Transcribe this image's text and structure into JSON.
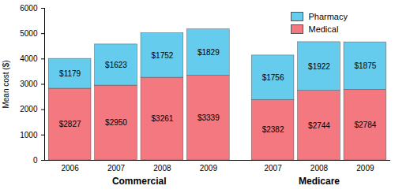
{
  "chart_data": {
    "type": "bar",
    "stacked": true,
    "data_labels": true,
    "legend": "top-right",
    "y_label": "Mean cost ($)",
    "categories": [
      "2006",
      "2007",
      "2008",
      "2009",
      "2007",
      "2008",
      "2009"
    ],
    "category_groups": [
      "Commercial",
      "Commercial",
      "Commercial",
      "Commercial",
      "Medicare",
      "Medicare",
      "Medicare"
    ],
    "series": [
      {
        "name": "Medical",
        "color": "#f4787f",
        "values": [
          2827,
          2950,
          3261,
          3339,
          2382,
          2744,
          2784
        ],
        "value_labels": [
          "$2827",
          "$2950",
          "$3261",
          "$3339",
          "$2382",
          "$2744",
          "$2784"
        ]
      },
      {
        "name": "Pharmacy",
        "color": "#66ccee",
        "values": [
          1179,
          1623,
          1752,
          1829,
          1756,
          1922,
          1875
        ],
        "value_labels": [
          "$1179",
          "$1623",
          "$1752",
          "$1829",
          "$1756",
          "$1922",
          "$1875"
        ]
      }
    ],
    "ylim": [
      0,
      6000
    ],
    "yticks": [
      0,
      1000,
      2000,
      3000,
      4000,
      5000,
      6000
    ]
  }
}
